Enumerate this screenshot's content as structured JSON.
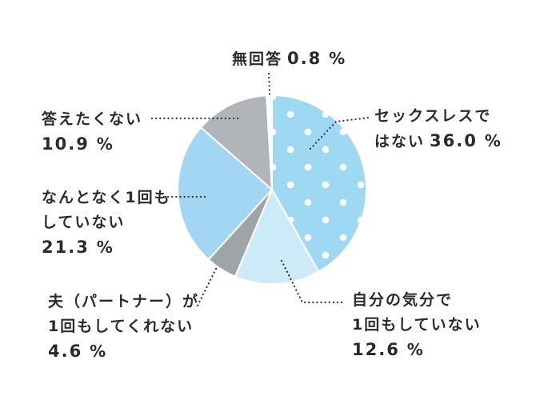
{
  "chart_data": {
    "type": "pie",
    "unit": "%",
    "slices": [
      {
        "lines": [
          "セックスレスで",
          "はない"
        ],
        "value": 36.0,
        "color": "#9ed8f2",
        "pattern": "dots"
      },
      {
        "lines": [
          "自分の気分で",
          "1回もしていない"
        ],
        "value": 12.6,
        "color": "#cdeaf8"
      },
      {
        "lines": [
          "夫（パートナー）が",
          "1回もしてくれない"
        ],
        "value": 4.6,
        "color": "#9fa4a8"
      },
      {
        "lines": [
          "なんとなく1回も",
          "していない"
        ],
        "value": 21.3,
        "color": "#a3d6f3"
      },
      {
        "lines": [
          "答えたくない"
        ],
        "value": 10.9,
        "color": "#b1b4b8"
      },
      {
        "lines": [
          "無回答"
        ],
        "value": 0.8,
        "color": "#ffffff"
      }
    ],
    "pct_texts": [
      "36.0",
      "12.6",
      "4.6",
      "21.3",
      "10.9",
      "0.8"
    ]
  }
}
